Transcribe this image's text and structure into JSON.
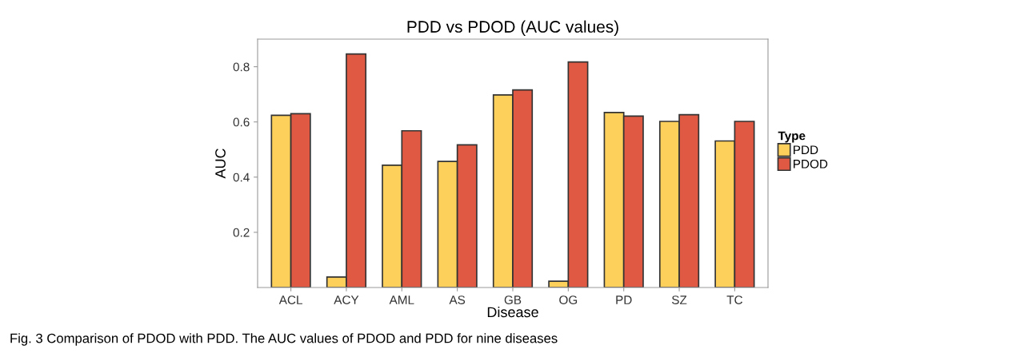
{
  "chart_data": {
    "type": "bar",
    "title": "PDD vs PDOD (AUC values)",
    "xlabel": "Disease",
    "ylabel": "AUC",
    "legend_title": "Type",
    "categories": [
      "ACL",
      "ACY",
      "AML",
      "AS",
      "GB",
      "OG",
      "PD",
      "SZ",
      "TC"
    ],
    "series": [
      {
        "name": "PDD",
        "color": "#fcd05a",
        "values": [
          0.624,
          0.038,
          0.443,
          0.457,
          0.698,
          0.023,
          0.634,
          0.602,
          0.531
        ]
      },
      {
        "name": "PDOD",
        "color": "#e05a43",
        "values": [
          0.63,
          0.846,
          0.568,
          0.517,
          0.716,
          0.817,
          0.621,
          0.626,
          0.602
        ]
      }
    ],
    "ylim": [
      0,
      0.9
    ],
    "yticks": [
      0.2,
      0.4,
      0.6,
      0.8
    ],
    "grid": false,
    "legend": "right",
    "annotations": [
      "Fig. 3 Comparison of PDOD with PDD. The AUC values of PDOD and PDD for nine diseases"
    ]
  }
}
